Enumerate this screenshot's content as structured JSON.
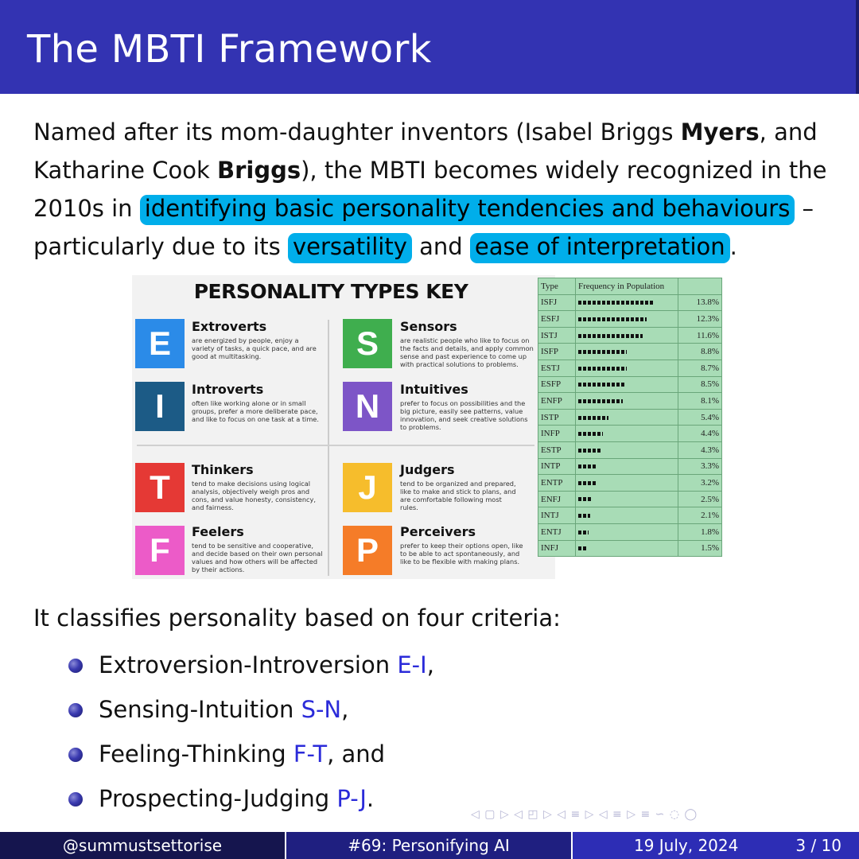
{
  "slide": {
    "title": "The MBTI Framework",
    "intro": {
      "p1": "Named after its mom-daughter inventors (Isabel Briggs ",
      "b1": "Myers",
      "p2": ", and Katharine Cook ",
      "b2": "Briggs",
      "p3": "), the MBTI becomes widely recognized in the 2010s in ",
      "h1": "identifying basic personality tendencies and behaviours",
      "p4": " – particularly due to its ",
      "h2": "versatility",
      "p5": " and ",
      "h3": "ease of interpretation",
      "p6": "."
    },
    "criteria_intro": "It classifies personality based on four criteria:",
    "criteria": [
      {
        "label": "Extroversion-Introversion ",
        "code": "E-I",
        "suffix": ","
      },
      {
        "label": "Sensing-Intuition ",
        "code": "S-N",
        "suffix": ","
      },
      {
        "label": "Feeling-Thinking ",
        "code": "F-T",
        "suffix": ", and"
      },
      {
        "label": "Prospecting-Judging ",
        "code": "P-J",
        "suffix": "."
      }
    ]
  },
  "personality_key": {
    "title": "PERSONALITY TYPES KEY",
    "types": [
      {
        "letter": "E",
        "name": "Extroverts",
        "desc": "are energized by people, enjoy a variety of tasks, a quick pace, and are good at multitasking.",
        "color": "#2b8be8"
      },
      {
        "letter": "S",
        "name": "Sensors",
        "desc": "are realistic people who like to focus on the facts and details, and apply common sense and past experience to come up with practical solutions to problems.",
        "color": "#3fae4e"
      },
      {
        "letter": "I",
        "name": "Introverts",
        "desc": "often like working alone or in small groups, prefer a more deliberate pace, and like to focus on one task at a time.",
        "color": "#1c5b86"
      },
      {
        "letter": "N",
        "name": "Intuitives",
        "desc": "prefer to focus on possibilities and the big picture, easily see patterns, value innovation, and seek creative solutions to problems.",
        "color": "#7d55c7"
      },
      {
        "letter": "T",
        "name": "Thinkers",
        "desc": "tend to make decisions using logical analysis, objectively weigh pros and cons, and value honesty, consistency, and fairness.",
        "color": "#e53935"
      },
      {
        "letter": "J",
        "name": "Judgers",
        "desc": "tend to be organized and prepared, like to make and stick to plans, and are comfortable following most rules.",
        "color": "#f6bd2c"
      },
      {
        "letter": "F",
        "name": "Feelers",
        "desc": "tend to be sensitive and cooperative, and decide based on their own personal values and how others will be affected by their actions.",
        "color": "#ec5bc8"
      },
      {
        "letter": "P",
        "name": "Perceivers",
        "desc": "prefer to keep their options open, like to be able to act spontaneously, and like to be flexible with making plans.",
        "color": "#f57c28"
      }
    ]
  },
  "frequency_table": {
    "headers": [
      "Type",
      "Frequency in Population",
      ""
    ],
    "rows": [
      {
        "type": "ISFJ",
        "pct": "13.8%",
        "value": 13.8
      },
      {
        "type": "ESFJ",
        "pct": "12.3%",
        "value": 12.3
      },
      {
        "type": "ISTJ",
        "pct": "11.6%",
        "value": 11.6
      },
      {
        "type": "ISFP",
        "pct": "8.8%",
        "value": 8.8
      },
      {
        "type": "ESTJ",
        "pct": "8.7%",
        "value": 8.7
      },
      {
        "type": "ESFP",
        "pct": "8.5%",
        "value": 8.5
      },
      {
        "type": "ENFP",
        "pct": "8.1%",
        "value": 8.1
      },
      {
        "type": "ISTP",
        "pct": "5.4%",
        "value": 5.4
      },
      {
        "type": "INFP",
        "pct": "4.4%",
        "value": 4.4
      },
      {
        "type": "ESTP",
        "pct": "4.3%",
        "value": 4.3
      },
      {
        "type": "INTP",
        "pct": "3.3%",
        "value": 3.3
      },
      {
        "type": "ENTP",
        "pct": "3.2%",
        "value": 3.2
      },
      {
        "type": "ENFJ",
        "pct": "2.5%",
        "value": 2.5
      },
      {
        "type": "INTJ",
        "pct": "2.1%",
        "value": 2.1
      },
      {
        "type": "ENTJ",
        "pct": "1.8%",
        "value": 1.8
      },
      {
        "type": "INFJ",
        "pct": "1.5%",
        "value": 1.5
      }
    ]
  },
  "footer": {
    "author": "@summustsettorise",
    "talk": "#69: Personifying AI",
    "date": "19 July, 2024",
    "page": "3 / 10"
  },
  "nav_symbols": "◁ ▢ ▷ ◁ ◰ ▷ ◁ ≡ ▷ ◁ ≡ ▷ ≡ ∽ ◌ ◯"
}
